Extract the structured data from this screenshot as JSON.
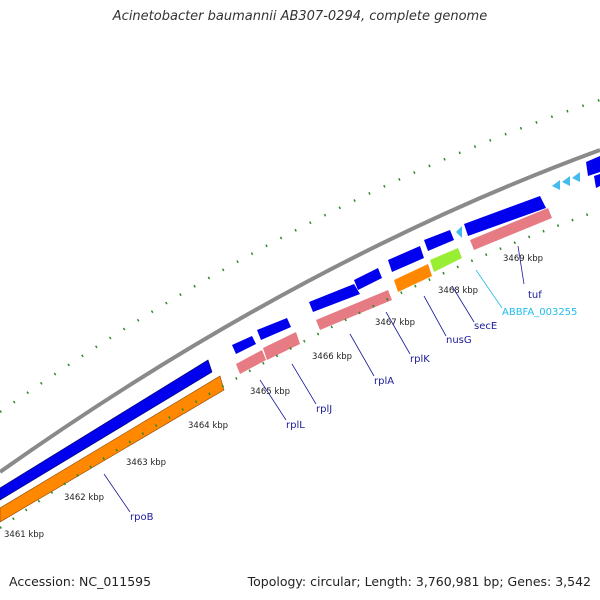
{
  "title": "Acinetobacter baumannii AB307-0294, complete genome",
  "footer": {
    "accession": "Accession: NC_011595",
    "summary": "Topology: circular; Length: 3,760,981 bp; Genes: 3,542"
  },
  "colors": {
    "backbone": "#888888",
    "cds_forward": "#0000ee",
    "cds_reverse": "#0000ee",
    "gene_pink": "#e77b84",
    "gene_orange": "#ff8800",
    "gene_green": "#99ee33",
    "trna_cyan": "#44bbee",
    "tick": "#227722",
    "gene_label": "#1a1a99",
    "gene_label_cyan": "#22bbee"
  },
  "kbp_labels": [
    "3461 kbp",
    "3462 kbp",
    "3463 kbp",
    "3464 kbp",
    "3465 kbp",
    "3466 kbp",
    "3467 kbp",
    "3468 kbp",
    "3469 kbp"
  ],
  "genes": [
    "rpoB",
    "rplL",
    "rplJ",
    "rplA",
    "rplK",
    "nusG",
    "secE",
    "ABBFA_003255",
    "tuf"
  ]
}
